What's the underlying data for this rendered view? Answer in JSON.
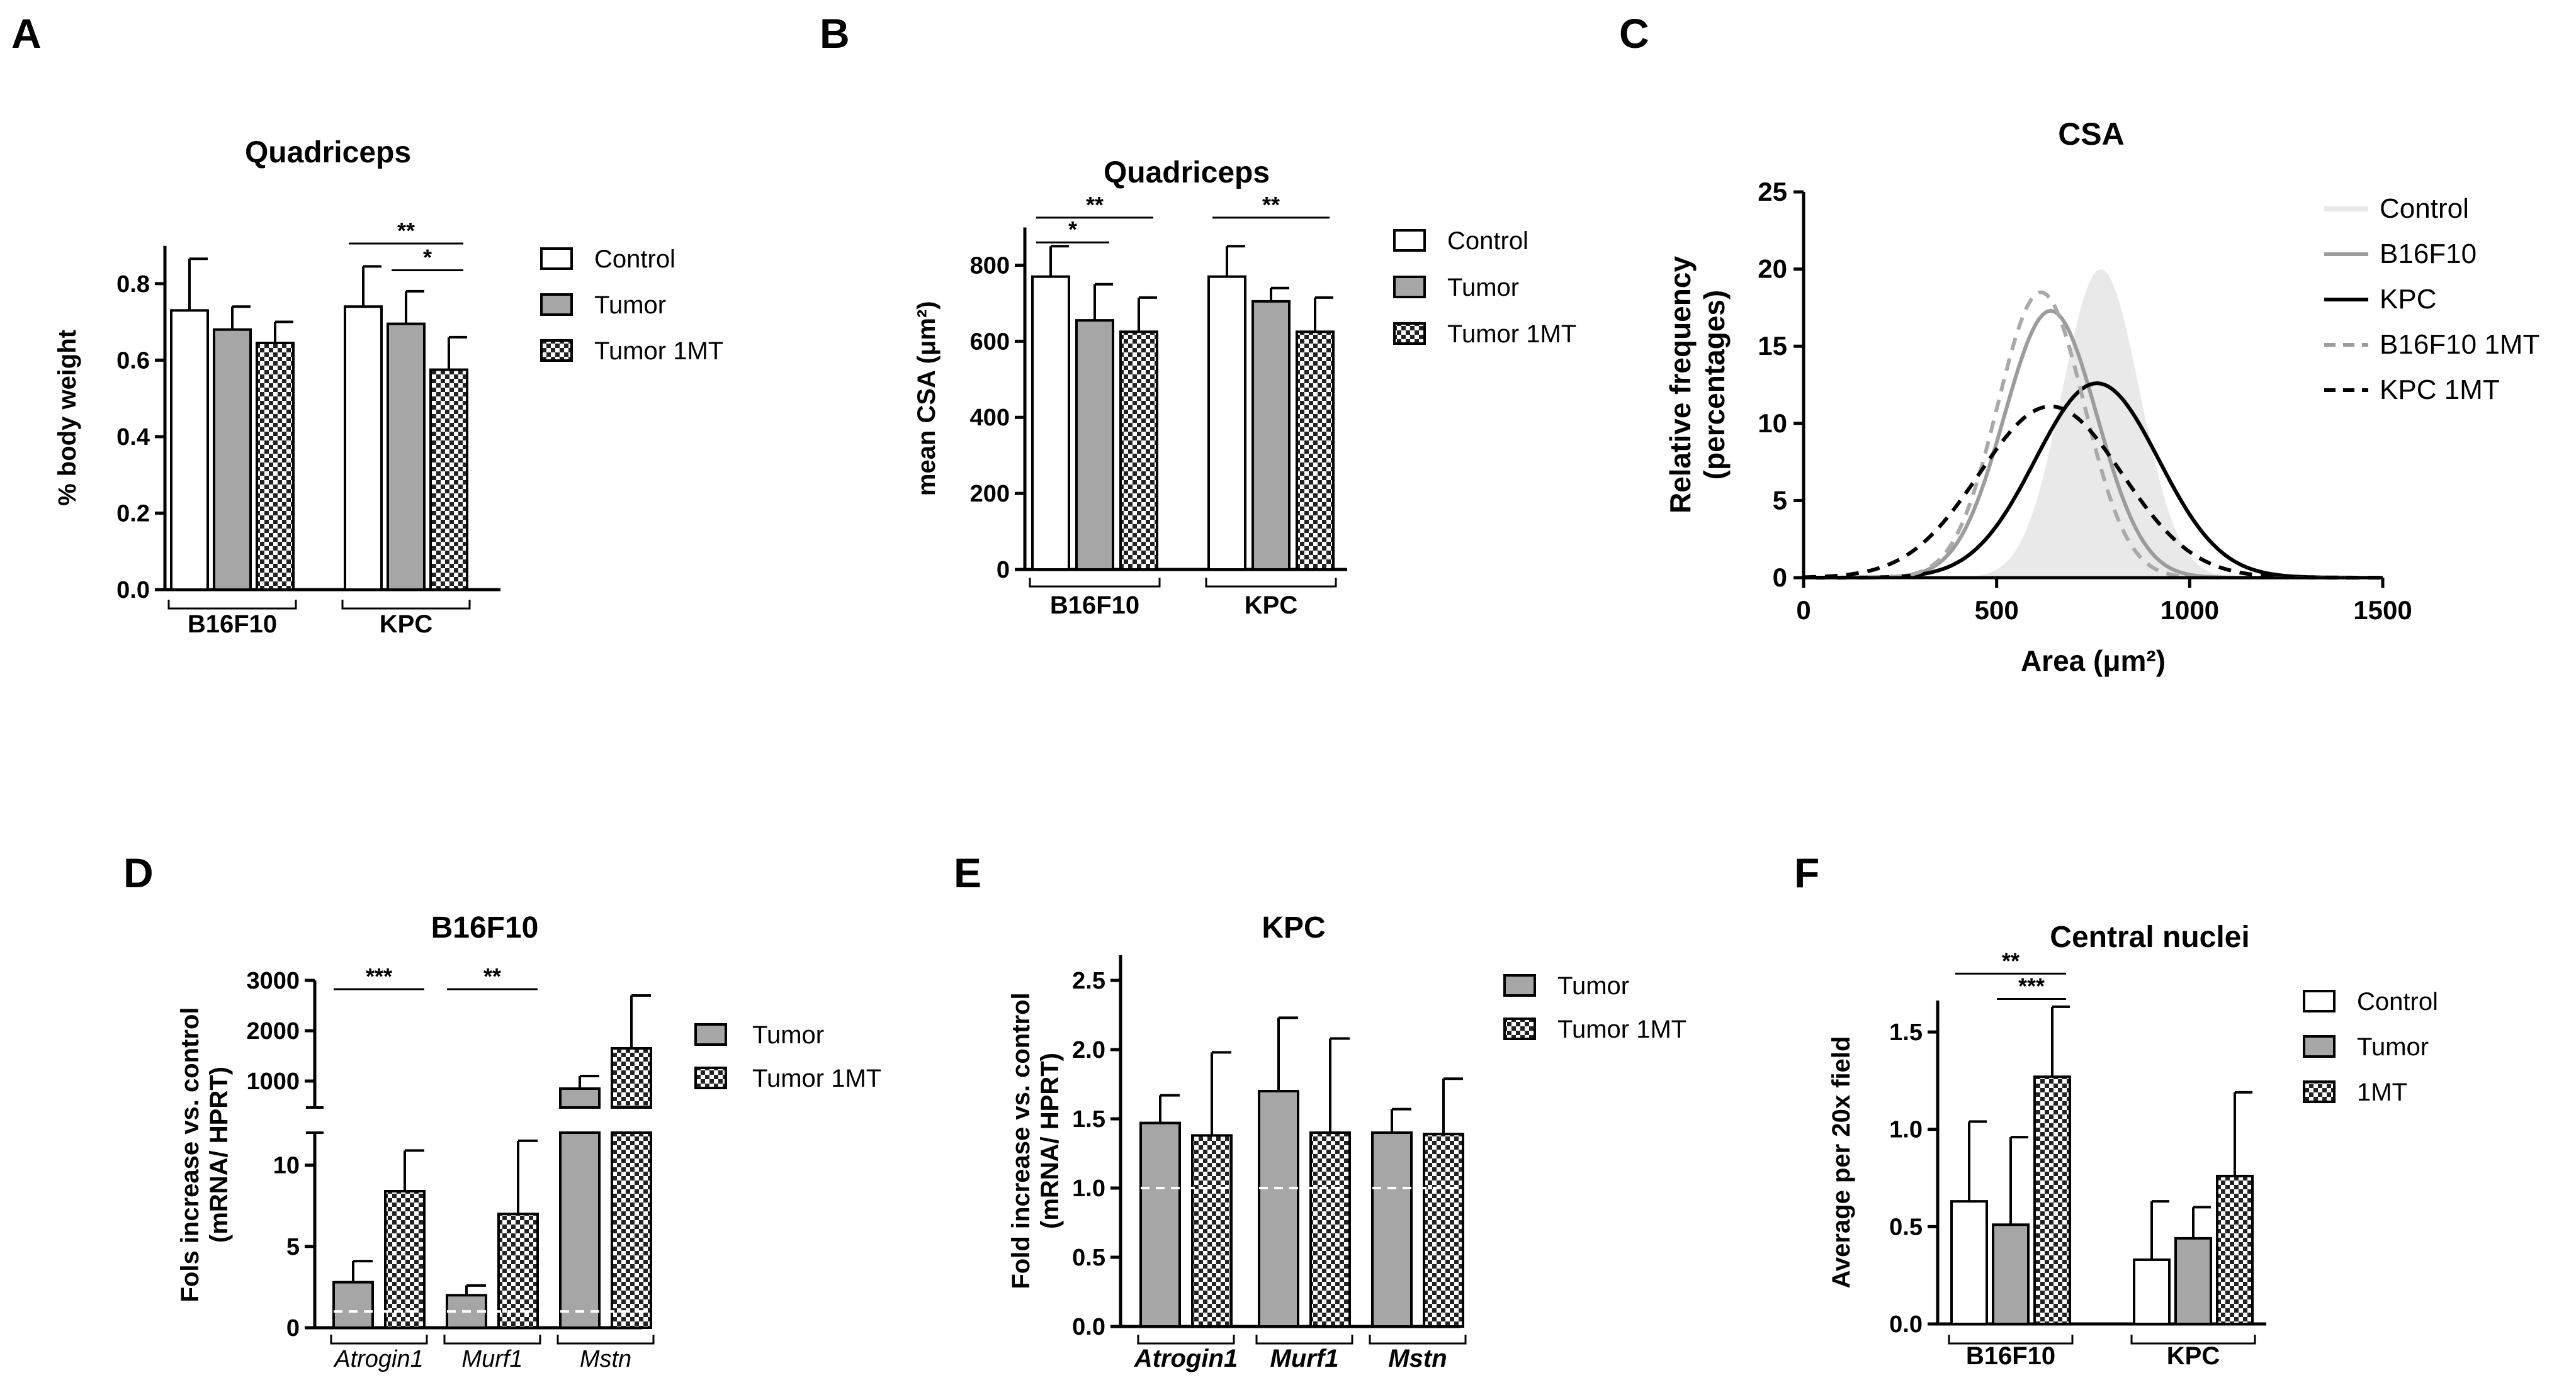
{
  "colors": {
    "axis": "#000000",
    "control_fill": "#ffffff",
    "tumor_fill": "#a6a6a6",
    "checker_dark": "#222222",
    "checker_light": "#ffffff",
    "dashed_ref": "#ffffff",
    "csa_control_fill": "#e9e9e9",
    "csa_b16f10": "#9c9c9c",
    "csa_b16f10_1mt": "#a9a9a9",
    "csa_kpc": "#000000"
  },
  "chart_data": [
    {
      "panel": "A",
      "type": "bar",
      "title": "Quadriceps",
      "ylabel": "% body weight",
      "xlabel": "",
      "ylim": [
        0,
        0.9
      ],
      "yticks": [
        "0.0",
        "0.2",
        "0.4",
        "0.6",
        "0.8"
      ],
      "ytick_values": [
        0,
        0.2,
        0.4,
        0.6,
        0.8
      ],
      "groups": [
        "B16F10",
        "KPC"
      ],
      "legend": [
        "Control",
        "Tumor",
        "Tumor 1MT"
      ],
      "series": [
        {
          "name": "Control",
          "fill": "white",
          "values": [
            0.73,
            0.74
          ],
          "errors": [
            0.135,
            0.105
          ]
        },
        {
          "name": "Tumor",
          "fill": "gray",
          "values": [
            0.68,
            0.695
          ],
          "errors": [
            0.06,
            0.085
          ]
        },
        {
          "name": "Tumor 1MT",
          "fill": "checker",
          "values": [
            0.645,
            0.575
          ],
          "errors": [
            0.055,
            0.085
          ]
        }
      ],
      "significance": [
        {
          "label": "**",
          "group": 1,
          "from": 0,
          "to": 2,
          "y": 0.905
        },
        {
          "label": "*",
          "group": 1,
          "from": 1,
          "to": 2,
          "y": 0.835
        }
      ]
    },
    {
      "panel": "B",
      "type": "bar",
      "title": "Quadriceps",
      "ylabel": "mean CSA (μm²)",
      "xlabel": "",
      "ylim": [
        0,
        910
      ],
      "yticks": [
        "0",
        "200",
        "400",
        "600",
        "800"
      ],
      "ytick_values": [
        0,
        200,
        400,
        600,
        800
      ],
      "groups": [
        "B16F10",
        "KPC"
      ],
      "legend": [
        "Control",
        "Tumor",
        "Tumor 1MT"
      ],
      "series": [
        {
          "name": "Control",
          "fill": "white",
          "values": [
            770,
            770
          ],
          "errors": [
            80,
            80
          ]
        },
        {
          "name": "Tumor",
          "fill": "gray",
          "values": [
            655,
            705
          ],
          "errors": [
            95,
            35
          ]
        },
        {
          "name": "Tumor 1MT",
          "fill": "checker",
          "values": [
            625,
            625
          ],
          "errors": [
            90,
            90
          ]
        }
      ],
      "significance": [
        {
          "label": "*",
          "group": 0,
          "from": 0,
          "to": 1,
          "y": 860
        },
        {
          "label": "**",
          "group": 0,
          "from": 0,
          "to": 2,
          "y": 925
        },
        {
          "label": "**",
          "group": 1,
          "from": 0,
          "to": 2,
          "y": 925
        }
      ]
    },
    {
      "panel": "C",
      "type": "area",
      "title": "CSA",
      "ylabel": "Relative frequency",
      "ylabel2": "(percentages)",
      "xlabel": "Area (μm²)",
      "xlim": [
        0,
        1500
      ],
      "ylim": [
        0,
        25
      ],
      "xticks": [
        "0",
        "500",
        "1000",
        "1500"
      ],
      "xtick_values": [
        0,
        500,
        1000,
        1500
      ],
      "yticks": [
        "0",
        "5",
        "10",
        "15",
        "20",
        "25"
      ],
      "ytick_values": [
        0,
        5,
        10,
        15,
        20,
        25
      ],
      "series": [
        {
          "name": "Control",
          "style": "fill",
          "mean": 770,
          "sd": 100,
          "peak": 20
        },
        {
          "name": "B16F10",
          "style": "solid-gray",
          "mean": 640,
          "sd": 120,
          "peak": 17.3
        },
        {
          "name": "KPC",
          "style": "solid-black",
          "mean": 760,
          "sd": 160,
          "peak": 12.6
        },
        {
          "name": "B16F10 1MT",
          "style": "dashed-gray",
          "mean": 615,
          "sd": 112,
          "peak": 18.5
        },
        {
          "name": "KPC 1MT",
          "style": "dashed-black",
          "mean": 640,
          "sd": 185,
          "peak": 11.1
        }
      ]
    },
    {
      "panel": "D",
      "type": "bar",
      "title": "B16F10",
      "ylabel": "Fols increase vs. control",
      "ylabel2": "(mRNA/ HPRT)",
      "xlabel": "",
      "ylim_low": [
        0,
        12
      ],
      "ylim_high": [
        0,
        3000
      ],
      "yticks_low": [
        "0",
        "5",
        "10"
      ],
      "ytick_values_low": [
        0,
        5,
        10
      ],
      "yticks_high": [
        "1000",
        "2000",
        "3000"
      ],
      "ytick_values_high": [
        1000,
        2000,
        3000
      ],
      "groups": [
        "Atrogin1",
        "Murf1",
        "Mstn"
      ],
      "legend": [
        "Tumor",
        "Tumor 1MT"
      ],
      "series": [
        {
          "name": "Tumor",
          "fill": "gray",
          "values": [
            2.8,
            2.0,
            850
          ],
          "errors": [
            1.3,
            0.6,
            250
          ]
        },
        {
          "name": "Tumor 1MT",
          "fill": "checker",
          "values": [
            8.4,
            7.0,
            1650
          ],
          "errors": [
            2.5,
            4.5,
            1050
          ]
        }
      ],
      "reference_line": 1.0,
      "significance": [
        {
          "label": "***",
          "group": 0
        },
        {
          "label": "**",
          "group": 1
        }
      ]
    },
    {
      "panel": "E",
      "type": "bar",
      "title": "KPC",
      "ylabel": "Fold increase vs. control",
      "ylabel2": "(mRNA/ HPRT)",
      "xlabel": "",
      "ylim": [
        0,
        2.5
      ],
      "yticks": [
        "0.0",
        "0.5",
        "1.0",
        "1.5",
        "2.0",
        "2.5"
      ],
      "ytick_values": [
        0,
        0.5,
        1.0,
        1.5,
        2.0,
        2.5
      ],
      "groups": [
        "Atrogin1",
        "Murf1",
        "Mstn"
      ],
      "legend": [
        "Tumor",
        "Tumor 1MT"
      ],
      "series": [
        {
          "name": "Tumor",
          "fill": "gray",
          "values": [
            1.47,
            1.7,
            1.4
          ],
          "errors": [
            0.2,
            0.53,
            0.17
          ]
        },
        {
          "name": "Tumor 1MT",
          "fill": "checker",
          "values": [
            1.38,
            1.4,
            1.39
          ],
          "errors": [
            0.6,
            0.68,
            0.4
          ]
        }
      ],
      "reference_line": 1.0
    },
    {
      "panel": "F",
      "type": "bar",
      "title": "Central nuclei",
      "ylabel": "Average per 20x field",
      "xlabel": "",
      "ylim": [
        0,
        1.72
      ],
      "yticks": [
        "0.0",
        "0.5",
        "1.0",
        "1.5"
      ],
      "ytick_values": [
        0,
        0.5,
        1.0,
        1.5
      ],
      "groups": [
        "B16F10",
        "KPC"
      ],
      "legend": [
        "Control",
        "Tumor",
        "1MT"
      ],
      "series": [
        {
          "name": "Control",
          "fill": "white",
          "values": [
            0.63,
            0.33
          ],
          "errors": [
            0.41,
            0.3
          ]
        },
        {
          "name": "Tumor",
          "fill": "gray",
          "values": [
            0.51,
            0.44
          ],
          "errors": [
            0.45,
            0.16
          ]
        },
        {
          "name": "1MT",
          "fill": "checker",
          "values": [
            1.27,
            0.76
          ],
          "errors": [
            0.36,
            0.43
          ]
        }
      ],
      "significance": [
        {
          "label": "**",
          "group": 0,
          "from": 0,
          "to": 2,
          "y": 1.8
        },
        {
          "label": "***",
          "group": 0,
          "from": 1,
          "to": 2,
          "y": 1.67
        }
      ]
    }
  ]
}
